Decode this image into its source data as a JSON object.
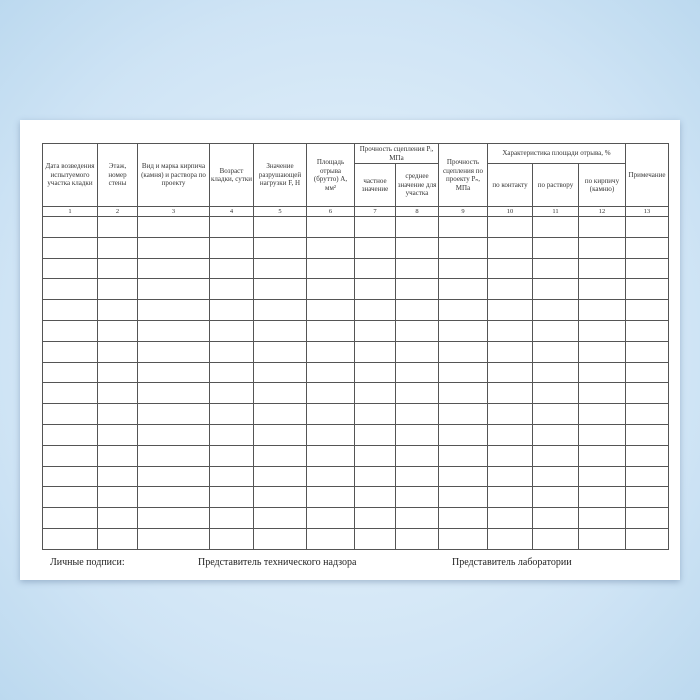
{
  "headers": {
    "c1": "Дата возведения испытуемого участка кладки",
    "c2": "Этаж, номер стены",
    "c3": "Вид и марка кирпича (камня) и раствора по проекту",
    "c4": "Возраст кладки, сутки",
    "c5": "Значение разрушающей нагрузки F, Н",
    "c6": "Площадь отрыва (брутто) А, мм²",
    "group78": "Прочность сцепления Pᵢ, MПа",
    "c7": "частное значение",
    "c8": "среднее значение для участка",
    "c9": "Прочность сцепления по проекту Pₙ, MПа",
    "group1012": "Характеристика площади отрыва, %",
    "c10": "по контакту",
    "c11": "по раствору",
    "c12": "по кирпичу (камню)",
    "c13": "Примечание"
  },
  "column_numbers": [
    "1",
    "2",
    "3",
    "4",
    "5",
    "6",
    "7",
    "8",
    "9",
    "10",
    "11",
    "12",
    "13"
  ],
  "empty_rows": 16,
  "footer": {
    "signatures": "Личные подписи:",
    "supervision": "Представитель технического надзора",
    "laboratory": "Представитель лаборатории"
  }
}
